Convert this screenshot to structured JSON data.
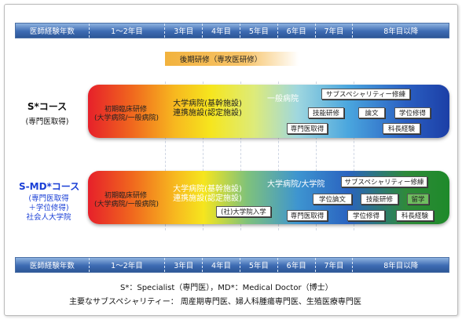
{
  "axis": {
    "header": "医師経験年数",
    "years": [
      "1～2年目",
      "3年目",
      "4年目",
      "5年目",
      "6年目",
      "7年目",
      "8年目以降"
    ]
  },
  "late_training": "後期研修（専攻医研修）",
  "course_s": {
    "title": "S*コース",
    "subtitle": "(専門医取得)",
    "initial": [
      "初期臨床研修",
      "(大学病院/一般病院)"
    ],
    "hospital": [
      "大学病院(基幹施設)",
      "連携施設(認定施設)"
    ],
    "general": "一般病院",
    "boxes": {
      "subspecialty": "サブスペシャリティー修練",
      "skills": "技能研修",
      "paper": "論文",
      "degree": "学位修得",
      "specialist": "専門医取得",
      "chief": "科長経験"
    }
  },
  "course_smd": {
    "title": "S-MD*コース",
    "subtitle_lines": [
      "(専門医取得",
      "＋学位修得)",
      "社会人大学院"
    ],
    "initial": [
      "初期臨床研修",
      "(大学病院/一般病院)"
    ],
    "hospital": [
      "大学病院(基幹施設)",
      "連携施設(認定施設)"
    ],
    "univ": "大学病院/大学院",
    "boxes": {
      "grad_entry": "(社)大学院入学",
      "subspecialty": "サブスペシャリティー修練",
      "degree_paper": "学位論文",
      "skills": "技能研修",
      "study_abroad": "留学",
      "specialist": "専門医取得",
      "degree": "学位修得",
      "chief": "科長経験"
    }
  },
  "footnotes": {
    "line1": "S*：Specialist（専門医），MD*：Medical Doctor（博士）",
    "line2": "主要なサブスペシャリティー： 周産期専門医、婦人科腫瘍専門医、生殖医療専門医"
  },
  "colors": {
    "axis_blue": "#3d6bb3",
    "late_orange": "#f2b23d",
    "course2_title": "#1a3fd6",
    "study_abroad_green": "#6fbe5f"
  }
}
